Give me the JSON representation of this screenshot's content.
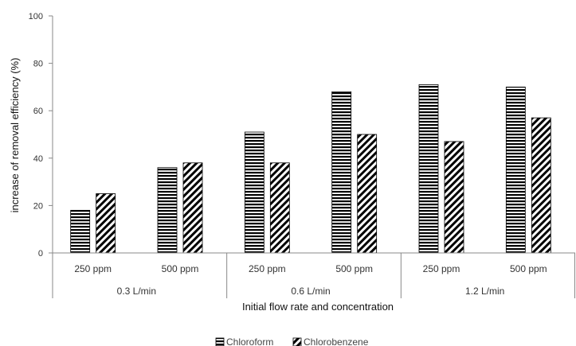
{
  "chart_data": {
    "type": "bar",
    "title": "",
    "xlabel": "Initial flow rate and concentration",
    "ylabel": "increase of removal efficiency (%)",
    "ylim": [
      0,
      100
    ],
    "yticks": [
      0,
      20,
      40,
      60,
      80,
      100
    ],
    "grid": false,
    "legend_position": "bottom",
    "groups": [
      {
        "label": "0.3 L/min",
        "categories": [
          "250 ppm",
          "500 ppm"
        ]
      },
      {
        "label": "0.6 L/min",
        "categories": [
          "250 ppm",
          "500 ppm"
        ]
      },
      {
        "label": "1.2 L/min",
        "categories": [
          "250 ppm",
          "500 ppm"
        ]
      }
    ],
    "categories": [
      "250 ppm",
      "500 ppm",
      "250 ppm",
      "500 ppm",
      "250 ppm",
      "500 ppm"
    ],
    "series": [
      {
        "name": "Chloroform",
        "pattern": "horizontal-stripes",
        "values": [
          18,
          36,
          51,
          68,
          71,
          70
        ]
      },
      {
        "name": "Chlorobenzene",
        "pattern": "diagonal-stripes",
        "values": [
          25,
          38,
          38,
          50,
          47,
          57
        ]
      }
    ]
  }
}
